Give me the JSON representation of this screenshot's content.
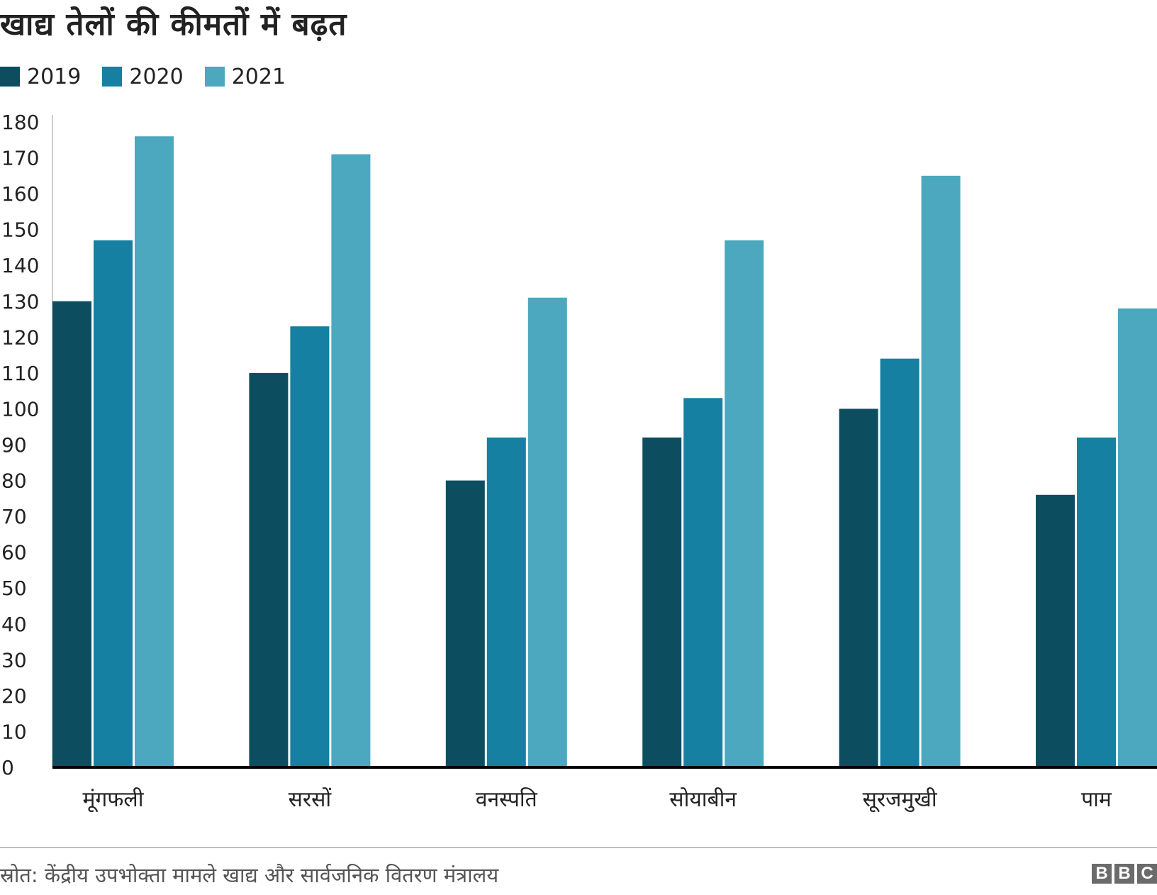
{
  "chart_data": {
    "type": "bar",
    "title": "खाद्य तेलों की कीमतों में बढ़त",
    "categories": [
      "मूंगफली",
      "सरसों",
      "वनस्पति",
      "सोयाबीन",
      "सूरजमुखी",
      "पाम"
    ],
    "series": [
      {
        "name": "2019",
        "color": "#0c4e60",
        "values": [
          130,
          110,
          80,
          92,
          100,
          76
        ]
      },
      {
        "name": "2020",
        "color": "#1580a1",
        "values": [
          147,
          123,
          92,
          103,
          114,
          92
        ]
      },
      {
        "name": "2021",
        "color": "#4ba8bf",
        "values": [
          176,
          171,
          131,
          147,
          165,
          128
        ]
      }
    ],
    "yticks": [
      0,
      10,
      20,
      30,
      40,
      50,
      60,
      70,
      80,
      90,
      100,
      110,
      120,
      130,
      140,
      150,
      160,
      170,
      180
    ],
    "ylim": [
      0,
      180
    ],
    "xlabel": "",
    "ylabel": "",
    "legend_position": "top-left",
    "grid": false
  },
  "footer": {
    "source": "स्रोत: केंद्रीय उपभोक्ता मामले खाद्य और सार्वजनिक वितरण मंत्रालय",
    "logo": [
      "B",
      "B",
      "C"
    ]
  }
}
